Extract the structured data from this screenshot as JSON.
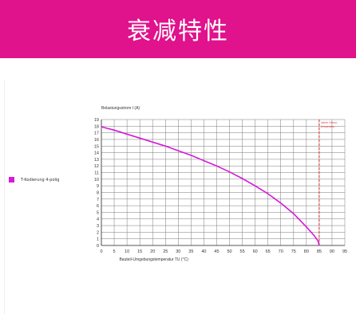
{
  "banner": {
    "title": "衰减特性",
    "color": "#e0128c"
  },
  "legend": {
    "label": "T-Kodierung 4-polig",
    "color": "#d61ad6"
  },
  "chart_data": {
    "type": "line",
    "ylabel": "Belastungsstrom I (A)",
    "xlabel": "Bauteil-Umgebungstemperatur TU (°C)",
    "xlim": [
      0,
      95
    ],
    "ylim": [
      0,
      19
    ],
    "x_ticks": [
      0,
      5,
      10,
      15,
      20,
      25,
      30,
      35,
      40,
      45,
      50,
      55,
      60,
      65,
      70,
      75,
      80,
      85,
      90,
      95
    ],
    "y_ticks": [
      0,
      1,
      2,
      3,
      4,
      5,
      6,
      7,
      8,
      9,
      10,
      11,
      12,
      13,
      14,
      15,
      16,
      17,
      18,
      19
    ],
    "grid": true,
    "series": [
      {
        "name": "T-Kodierung 4-polig",
        "color": "#d61ad6",
        "x": [
          0,
          5,
          10,
          15,
          20,
          25,
          30,
          35,
          40,
          45,
          50,
          55,
          60,
          65,
          70,
          75,
          80,
          83,
          84.5,
          85
        ],
        "y": [
          17.9,
          17.4,
          16.8,
          16.2,
          15.6,
          15.0,
          14.3,
          13.6,
          12.8,
          12.0,
          11.1,
          10.1,
          9.0,
          7.8,
          6.4,
          4.8,
          2.8,
          1.5,
          0.7,
          0
        ]
      }
    ],
    "limit_line": {
      "x": 85,
      "color": "#e23b3b",
      "label_lines": [
        "obere Grenz-",
        "temperatur"
      ]
    }
  }
}
